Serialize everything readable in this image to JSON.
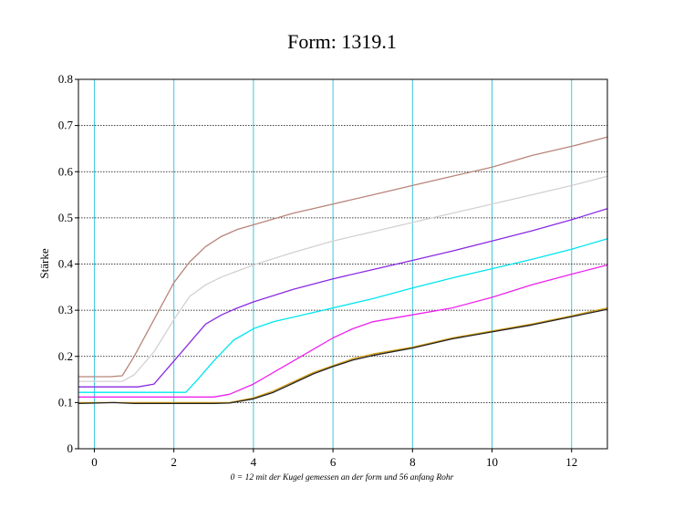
{
  "chart_data": {
    "type": "line",
    "title": "Form:  1319.1",
    "xlabel": "",
    "ylabel": "Stärke",
    "note": "0 = 12 mit der Kugel gemessen an der form und 56 anfang Rohr",
    "xlim": [
      -0.4,
      12.9
    ],
    "ylim": [
      0,
      0.8
    ],
    "xticks": [
      0,
      2,
      4,
      6,
      8,
      10,
      12
    ],
    "yticks": [
      0,
      0.1,
      0.2,
      0.3,
      0.4,
      0.5,
      0.6,
      0.7,
      0.8
    ],
    "xtick_labels": [
      "0",
      "2",
      "4",
      "6",
      "8",
      "10",
      "12"
    ],
    "ytick_labels": [
      "0",
      "0.1",
      "0.2",
      "0.3",
      "0.4",
      "0.5",
      "0.6",
      "0.7",
      "0.8"
    ],
    "vgrid_x": [
      0,
      2,
      4,
      6,
      8,
      10,
      12
    ],
    "hgrid_y": [
      0.1,
      0.2,
      0.3,
      0.4,
      0.5,
      0.6,
      0.7
    ],
    "series": [
      {
        "color": "#b8857a",
        "x": [
          -0.4,
          0.4,
          0.7,
          1.0,
          1.5,
          2.0,
          2.4,
          2.8,
          3.2,
          3.6,
          4.0,
          5.0,
          6.0,
          7.0,
          8.0,
          9.0,
          10.0,
          11.0,
          12.0,
          12.9
        ],
        "y": [
          0.156,
          0.156,
          0.158,
          0.2,
          0.28,
          0.36,
          0.405,
          0.438,
          0.46,
          0.475,
          0.485,
          0.51,
          0.53,
          0.55,
          0.57,
          0.59,
          0.61,
          0.635,
          0.655,
          0.675
        ]
      },
      {
        "color": "#d4d0d0",
        "x": [
          -0.4,
          0.7,
          1.0,
          1.5,
          2.0,
          2.4,
          2.8,
          3.2,
          3.6,
          4.0,
          5.0,
          6.0,
          7.0,
          8.0,
          9.0,
          10.0,
          11.0,
          12.0,
          12.9
        ],
        "y": [
          0.146,
          0.146,
          0.16,
          0.21,
          0.28,
          0.33,
          0.355,
          0.372,
          0.385,
          0.398,
          0.425,
          0.45,
          0.47,
          0.49,
          0.51,
          0.53,
          0.55,
          0.57,
          0.59
        ]
      },
      {
        "color": "#8a2be2",
        "x": [
          -0.4,
          1.1,
          1.5,
          2.0,
          2.4,
          2.8,
          3.2,
          3.6,
          4.0,
          5.0,
          6.0,
          7.0,
          8.0,
          9.0,
          10.0,
          11.0,
          12.0,
          12.9
        ],
        "y": [
          0.134,
          0.134,
          0.14,
          0.19,
          0.23,
          0.27,
          0.29,
          0.305,
          0.318,
          0.345,
          0.368,
          0.388,
          0.408,
          0.428,
          0.45,
          0.472,
          0.496,
          0.52
        ]
      },
      {
        "color": "#00e5ee",
        "x": [
          -0.4,
          2.3,
          2.6,
          3.0,
          3.5,
          4.0,
          4.5,
          5.0,
          6.0,
          7.0,
          8.0,
          9.0,
          10.0,
          11.0,
          12.0,
          12.9
        ],
        "y": [
          0.122,
          0.122,
          0.15,
          0.19,
          0.235,
          0.26,
          0.275,
          0.285,
          0.305,
          0.325,
          0.348,
          0.37,
          0.39,
          0.41,
          0.432,
          0.455
        ]
      },
      {
        "color": "#ee22ee",
        "x": [
          -0.4,
          3.0,
          3.4,
          4.0,
          5.0,
          6.0,
          6.5,
          7.0,
          8.0,
          9.0,
          10.0,
          11.0,
          12.0,
          12.9
        ],
        "y": [
          0.112,
          0.112,
          0.118,
          0.14,
          0.19,
          0.24,
          0.26,
          0.275,
          0.29,
          0.305,
          0.328,
          0.355,
          0.378,
          0.398
        ]
      },
      {
        "color": "#d4a017",
        "x": [
          -0.4,
          3.4,
          4.0,
          4.5,
          5.0,
          5.5,
          6.0,
          6.5,
          7.0,
          8.0,
          9.0,
          10.0,
          11.0,
          12.0,
          12.9
        ],
        "y": [
          0.1,
          0.1,
          0.11,
          0.125,
          0.145,
          0.165,
          0.18,
          0.195,
          0.205,
          0.22,
          0.24,
          0.255,
          0.27,
          0.288,
          0.305
        ]
      },
      {
        "color": "#222222",
        "x": [
          -0.4,
          0.5,
          1.0,
          2.0,
          3.0,
          3.4,
          4.0,
          4.5,
          5.0,
          5.5,
          6.0,
          6.5,
          7.0,
          8.0,
          9.0,
          10.0,
          11.0,
          12.0,
          12.9
        ],
        "y": [
          0.098,
          0.1,
          0.098,
          0.098,
          0.098,
          0.099,
          0.108,
          0.122,
          0.142,
          0.162,
          0.178,
          0.192,
          0.202,
          0.218,
          0.238,
          0.253,
          0.268,
          0.286,
          0.302
        ]
      }
    ]
  }
}
